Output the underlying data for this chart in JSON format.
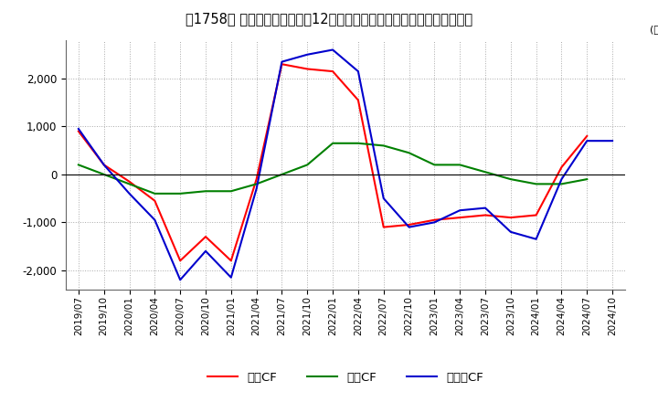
{
  "title": "【1758】 キャッシュフローの12か月移動合計の対前年同期増減額の推移",
  "ylabel": "(百万円)",
  "ylim": [
    -2400,
    2800
  ],
  "yticks": [
    -2000,
    -1000,
    0,
    1000,
    2000
  ],
  "grid": true,
  "legend_labels": [
    "営業CF",
    "投資CF",
    "フリーCF"
  ],
  "line_colors": [
    "#ff0000",
    "#008000",
    "#0000cd"
  ],
  "dates": [
    "2019/07",
    "2019/10",
    "2020/01",
    "2020/04",
    "2020/07",
    "2020/10",
    "2021/01",
    "2021/04",
    "2021/07",
    "2021/10",
    "2022/01",
    "2022/04",
    "2022/07",
    "2022/10",
    "2023/01",
    "2023/04",
    "2023/07",
    "2023/10",
    "2024/01",
    "2024/04",
    "2024/07",
    "2024/10"
  ],
  "operating_cf": [
    900,
    200,
    -150,
    -550,
    -1800,
    -1300,
    -1800,
    -100,
    2300,
    2200,
    2150,
    1550,
    -1100,
    -1050,
    -950,
    -900,
    -850,
    -900,
    -850,
    150,
    800,
    null
  ],
  "investing_cf": [
    200,
    0,
    -200,
    -400,
    -400,
    -350,
    -350,
    -200,
    0,
    200,
    650,
    650,
    600,
    450,
    200,
    200,
    50,
    -100,
    -200,
    -200,
    -100,
    null
  ],
  "free_cf": [
    950,
    200,
    -400,
    -950,
    -2200,
    -1600,
    -2150,
    -300,
    2350,
    2500,
    2600,
    2150,
    -500,
    -1100,
    -1000,
    -750,
    -700,
    -1200,
    -1350,
    -100,
    700,
    700
  ]
}
